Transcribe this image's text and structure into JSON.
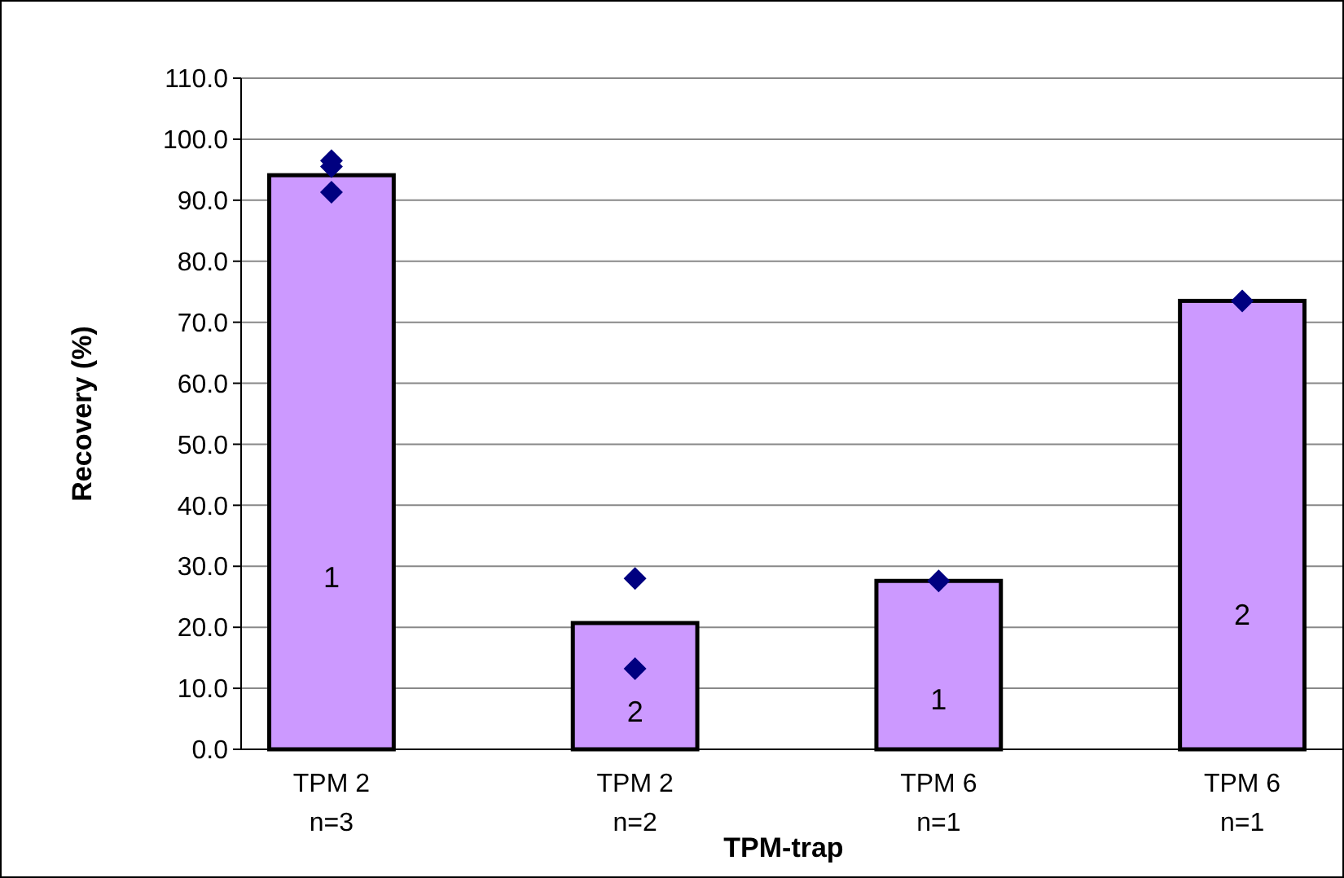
{
  "chart_data": {
    "type": "bar",
    "xlabel": "TPM-trap",
    "ylabel": "Recovery (%)",
    "categories": [
      "TPM 2\nn=3",
      "TPM 2\nn=2",
      "TPM 6\nn=1",
      "TPM 6\nn=1"
    ],
    "series": [
      {
        "color": "#cc99ff",
        "values": [
          94.1,
          20.7,
          27.6,
          73.5
        ]
      },
      {
        "type": "scatter",
        "color": "#000080",
        "values": [
          96.5,
          28.0,
          27.6,
          73.5
        ]
      },
      {
        "type": "scatter",
        "color": "#000080",
        "values": [
          95.5,
          13.2,
          null,
          null
        ]
      },
      {
        "type": "scatter",
        "color": "#000080",
        "values": [
          91.3,
          null,
          null,
          null
        ]
      }
    ],
    "marker": "diamond",
    "ylim": [
      0,
      110
    ],
    "yticks": [
      {
        "value": 0,
        "label": "0.0"
      },
      {
        "value": 10,
        "label": "10.0"
      },
      {
        "value": 20,
        "label": "20.0"
      },
      {
        "value": 30,
        "label": "30.0"
      },
      {
        "value": 40,
        "label": "40.0"
      },
      {
        "value": 50,
        "label": "50.0"
      },
      {
        "value": 60,
        "label": "60.0"
      },
      {
        "value": 70,
        "label": "70.0"
      },
      {
        "value": 80,
        "label": "80.0"
      },
      {
        "value": 90,
        "label": "90.0"
      },
      {
        "value": 100,
        "label": "100.0"
      },
      {
        "value": 110,
        "label": "110.0"
      }
    ],
    "grid": "y",
    "annotations": [
      "1",
      "2",
      "1",
      "2"
    ]
  }
}
